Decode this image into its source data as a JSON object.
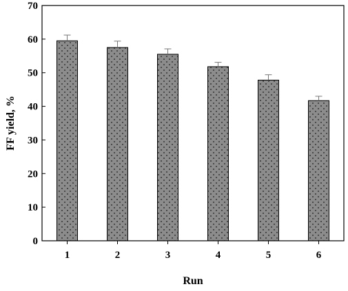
{
  "chart_data": {
    "type": "bar",
    "title": "",
    "xlabel": "Run",
    "ylabel": "FF yield, %",
    "categories": [
      "1",
      "2",
      "3",
      "4",
      "5",
      "6"
    ],
    "series": [
      {
        "values": [
          59.5,
          57.5,
          55.5,
          51.8,
          47.8,
          41.7
        ],
        "errors": [
          1.7,
          1.9,
          1.6,
          1.3,
          1.6,
          1.3
        ]
      }
    ],
    "ylim": [
      0,
      70
    ],
    "yticks": [
      "0",
      "10",
      "20",
      "30",
      "40",
      "50",
      "60",
      "70"
    ],
    "grid": false,
    "bar_fill": "dotted gray",
    "colors": {
      "bar_fill": "#8c8c8c",
      "bar_dots": "#1a1a1a",
      "error_bar": "#777777",
      "axis": "#000000"
    }
  }
}
